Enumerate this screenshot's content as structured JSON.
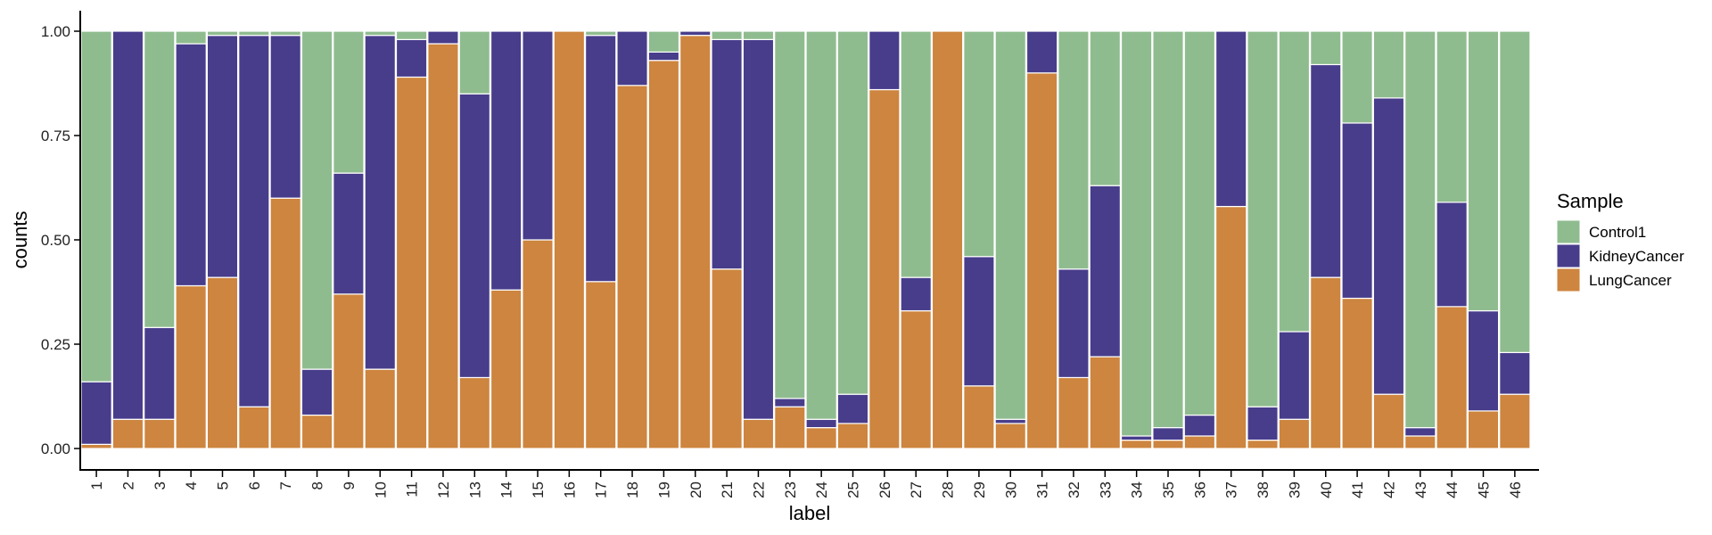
{
  "chart_data": {
    "type": "bar",
    "stacked": true,
    "xlabel": "label",
    "ylabel": "counts",
    "ylim": [
      0,
      1
    ],
    "yticks": [
      "0.00",
      "0.25",
      "0.50",
      "0.75",
      "1.00"
    ],
    "grid": false,
    "legend_title": "Sample",
    "legend_position": "right",
    "categories": [
      "1",
      "2",
      "3",
      "4",
      "5",
      "6",
      "7",
      "8",
      "9",
      "10",
      "11",
      "12",
      "13",
      "14",
      "15",
      "16",
      "17",
      "18",
      "19",
      "20",
      "21",
      "22",
      "23",
      "24",
      "25",
      "26",
      "27",
      "28",
      "29",
      "30",
      "31",
      "32",
      "33",
      "34",
      "35",
      "36",
      "37",
      "38",
      "39",
      "40",
      "41",
      "42",
      "43",
      "44",
      "45",
      "46"
    ],
    "series": [
      {
        "name": "LungCancer",
        "color": "#CD853F",
        "values": [
          0.01,
          0.07,
          0.07,
          0.39,
          0.41,
          0.1,
          0.6,
          0.08,
          0.37,
          0.19,
          0.89,
          0.97,
          0.17,
          0.38,
          0.5,
          1.0,
          0.4,
          0.87,
          0.93,
          0.99,
          0.43,
          0.07,
          0.1,
          0.05,
          0.06,
          0.86,
          0.33,
          1.0,
          0.15,
          0.06,
          0.9,
          0.17,
          0.22,
          0.02,
          0.02,
          0.03,
          0.58,
          0.02,
          0.07,
          0.41,
          0.36,
          0.13,
          0.03,
          0.34,
          0.09,
          0.13
        ]
      },
      {
        "name": "KidneyCancer",
        "color": "#483D8B",
        "values": [
          0.15,
          0.93,
          0.22,
          0.58,
          0.58,
          0.89,
          0.39,
          0.11,
          0.29,
          0.8,
          0.09,
          0.03,
          0.68,
          0.62,
          0.5,
          0.0,
          0.59,
          0.13,
          0.02,
          0.01,
          0.55,
          0.91,
          0.02,
          0.02,
          0.07,
          0.14,
          0.08,
          0.0,
          0.31,
          0.01,
          0.1,
          0.26,
          0.41,
          0.01,
          0.03,
          0.05,
          0.42,
          0.08,
          0.21,
          0.51,
          0.42,
          0.71,
          0.02,
          0.25,
          0.24,
          0.1
        ]
      },
      {
        "name": "Control1",
        "color": "#8FBC8F",
        "values": [
          0.84,
          0.0,
          0.71,
          0.03,
          0.01,
          0.01,
          0.01,
          0.81,
          0.34,
          0.01,
          0.02,
          0.0,
          0.15,
          0.0,
          0.0,
          0.0,
          0.01,
          0.0,
          0.05,
          0.0,
          0.02,
          0.02,
          0.88,
          0.93,
          0.87,
          0.0,
          0.59,
          0.0,
          0.54,
          0.93,
          0.0,
          0.57,
          0.37,
          0.97,
          0.95,
          0.92,
          0.0,
          0.9,
          0.72,
          0.08,
          0.22,
          0.16,
          0.95,
          0.41,
          0.67,
          0.77
        ]
      }
    ],
    "legend_order": [
      "Control1",
      "KidneyCancer",
      "LungCancer"
    ]
  }
}
